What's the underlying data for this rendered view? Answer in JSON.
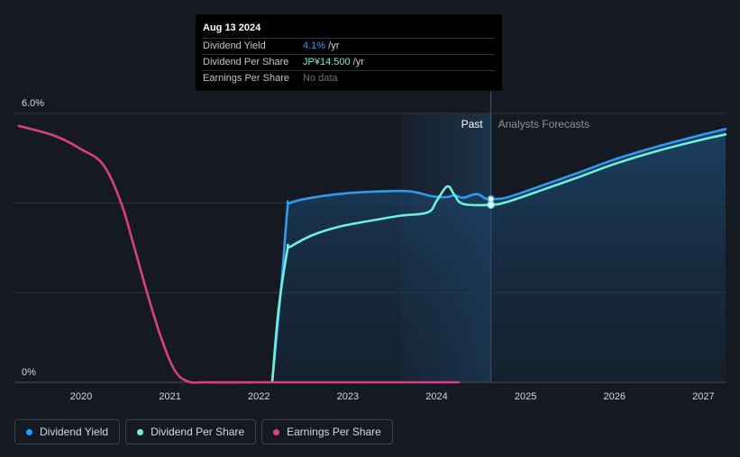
{
  "tooltip": {
    "date": "Aug 13 2024",
    "rows": [
      {
        "label": "Dividend Yield",
        "value": "4.1%",
        "unit": " /yr"
      },
      {
        "label": "Dividend Per Share",
        "value": "JP¥14.500",
        "unit": " /yr"
      },
      {
        "label": "Earnings Per Share",
        "value": "No data",
        "unit": ""
      }
    ]
  },
  "legend": [
    {
      "label": "Dividend Yield",
      "color": "#2e9bf0"
    },
    {
      "label": "Dividend Per Share",
      "color": "#6ff0da"
    },
    {
      "label": "Earnings Per Share",
      "color": "#d6427f"
    }
  ],
  "chart_data": {
    "type": "line",
    "y_tick_labels": [
      "6.0%",
      "0%"
    ],
    "ylim": [
      0,
      6
    ],
    "xlim": [
      2019.25,
      2027.25
    ],
    "x_ticks": [
      2020,
      2021,
      2022,
      2023,
      2024,
      2025,
      2026,
      2027
    ],
    "past_label": "Past",
    "forecast_label": "Analysts Forecasts",
    "past_highlight_start": 2023.6,
    "divider_x": 2024.61,
    "series": [
      {
        "name": "Dividend Yield",
        "color": "#2e9bf0",
        "points": [
          [
            2022.15,
            0
          ],
          [
            2022.25,
            2.1
          ],
          [
            2022.32,
            3.85
          ],
          [
            2022.35,
            4.0
          ],
          [
            2022.6,
            4.12
          ],
          [
            2023.0,
            4.22
          ],
          [
            2023.4,
            4.26
          ],
          [
            2023.7,
            4.26
          ],
          [
            2023.95,
            4.15
          ],
          [
            2024.1,
            4.13
          ],
          [
            2024.2,
            4.17
          ],
          [
            2024.3,
            4.12
          ],
          [
            2024.45,
            4.2
          ],
          [
            2024.55,
            4.1
          ],
          [
            2024.61,
            4.09
          ],
          [
            2024.8,
            4.13
          ],
          [
            2025.2,
            4.4
          ],
          [
            2025.6,
            4.68
          ],
          [
            2026.0,
            4.97
          ],
          [
            2026.5,
            5.27
          ],
          [
            2027.0,
            5.53
          ],
          [
            2027.25,
            5.65
          ]
        ],
        "area": true
      },
      {
        "name": "Dividend Per Share",
        "color": "#6ff0da",
        "points": [
          [
            2022.15,
            0
          ],
          [
            2022.22,
            1.6
          ],
          [
            2022.32,
            2.95
          ],
          [
            2022.35,
            3.02
          ],
          [
            2022.6,
            3.28
          ],
          [
            2022.9,
            3.47
          ],
          [
            2023.3,
            3.62
          ],
          [
            2023.6,
            3.72
          ],
          [
            2023.9,
            3.79
          ],
          [
            2024.0,
            4.05
          ],
          [
            2024.12,
            4.37
          ],
          [
            2024.2,
            4.18
          ],
          [
            2024.3,
            3.98
          ],
          [
            2024.61,
            3.96
          ],
          [
            2024.8,
            4.03
          ],
          [
            2025.2,
            4.3
          ],
          [
            2025.6,
            4.58
          ],
          [
            2026.0,
            4.87
          ],
          [
            2026.5,
            5.17
          ],
          [
            2027.0,
            5.42
          ],
          [
            2027.25,
            5.53
          ]
        ],
        "area": false
      },
      {
        "name": "Earnings Per Share",
        "color": "#d6427f",
        "points": [
          [
            2019.3,
            5.72
          ],
          [
            2019.7,
            5.5
          ],
          [
            2020.0,
            5.2
          ],
          [
            2020.25,
            4.85
          ],
          [
            2020.45,
            4.0
          ],
          [
            2020.6,
            3.0
          ],
          [
            2020.75,
            1.95
          ],
          [
            2020.9,
            1.0
          ],
          [
            2021.05,
            0.28
          ],
          [
            2021.2,
            0.02
          ],
          [
            2021.4,
            0
          ],
          [
            2022.0,
            0
          ],
          [
            2023.0,
            0
          ],
          [
            2024.25,
            0
          ]
        ],
        "area": false
      }
    ],
    "markers": [
      {
        "series": "Dividend Yield",
        "x": 2024.61,
        "y": 4.09
      },
      {
        "series": "Dividend Per Share",
        "x": 2024.61,
        "y": 3.96
      }
    ]
  }
}
